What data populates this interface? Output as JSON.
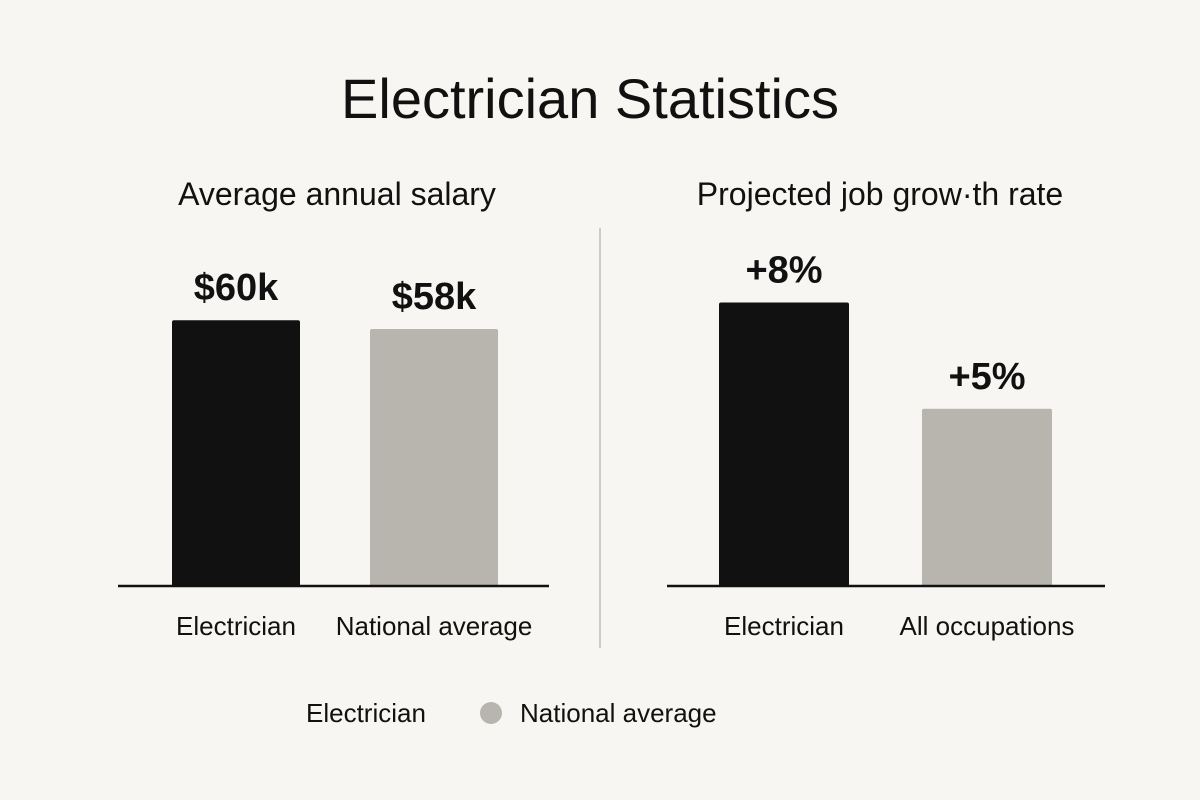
{
  "page": {
    "title": "Electrician Statistics",
    "background": "#f7f6f2",
    "primary_color": "#111111",
    "secondary_color": "#b8b5ae",
    "divider_color": "#cccccc"
  },
  "legend": {
    "items": [
      {
        "label": "Electrician",
        "color": "#111111",
        "marker": "none"
      },
      {
        "label": "National average",
        "color": "#b8b5ae",
        "marker": "circle"
      }
    ]
  },
  "chart_data": [
    {
      "type": "bar",
      "title": "Average annual salary",
      "categories": [
        "Electrician",
        "National average"
      ],
      "values": [
        60,
        58
      ],
      "value_labels": [
        "$60k",
        "$58k"
      ],
      "colors": [
        "#111111",
        "#b8b5ae"
      ],
      "ylim": [
        0,
        100
      ],
      "grid": false
    },
    {
      "type": "bar",
      "title": "Projected job grow·th rate",
      "categories": [
        "Electrician",
        "All occupations"
      ],
      "values": [
        8,
        5
      ],
      "value_labels": [
        "+8%",
        "+5%"
      ],
      "colors": [
        "#111111",
        "#b8b5ae"
      ],
      "ylim": [
        0,
        12.5
      ],
      "grid": false
    }
  ]
}
